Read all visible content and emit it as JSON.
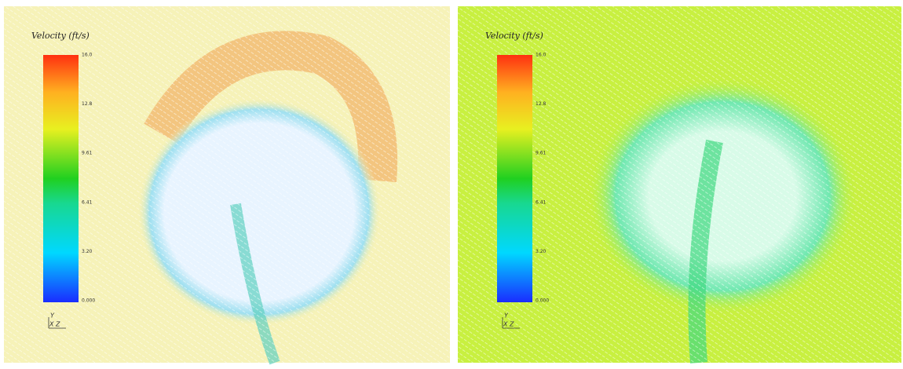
{
  "panels": [
    {
      "title": "Velocity (ft/s)",
      "colorbar_labels": [
        "16.0",
        "12.8",
        "9.61",
        "6.41",
        "3.20",
        "0.000"
      ],
      "axes": {
        "up": "Y",
        "right": "X Z"
      }
    },
    {
      "title": "Velocity (ft/s)",
      "colorbar_labels": [
        "16.0",
        "12.8",
        "9.61",
        "6.41",
        "3.20",
        "0.000"
      ],
      "axes": {
        "up": "Y",
        "right": "X Z"
      }
    }
  ]
}
